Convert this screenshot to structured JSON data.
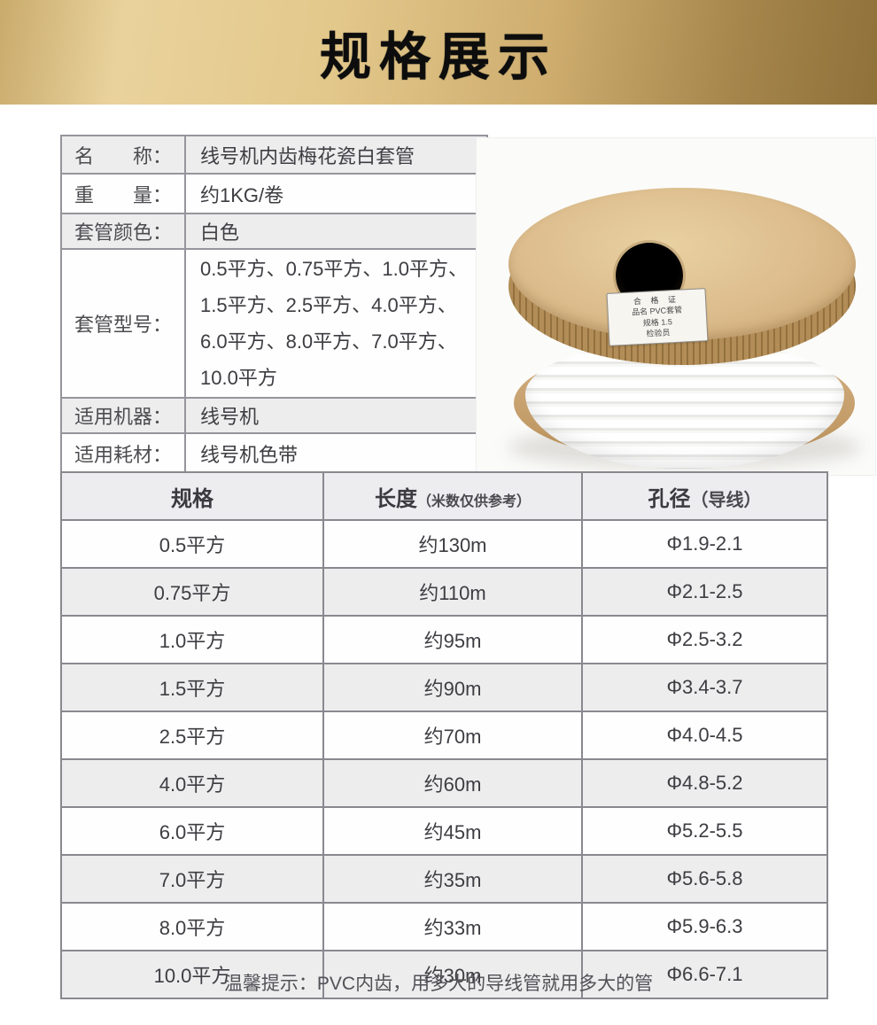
{
  "banner": {
    "title": "规格展示"
  },
  "colors": {
    "banner_gold_light": "#e9d29c",
    "banner_gold_dark": "#8f713a",
    "banner_text": "#0d0d0d",
    "table_border": "#8a888f",
    "row_shade": "#ededee",
    "spool_cardboard": "#d6b686",
    "tube_white": "#ffffff"
  },
  "spec_table": {
    "rows": [
      {
        "label": "名　　称：",
        "value": "线号机内齿梅花瓷白套管"
      },
      {
        "label": "重　　量：",
        "value": "约1KG/卷"
      },
      {
        "label": "套管颜色：",
        "value": "白色"
      },
      {
        "label": "套管型号：",
        "value_lines": [
          "0.5平方、0.75平方、1.0平方、",
          "1.5平方、2.5平方、4.0平方、",
          "6.0平方、8.0平方、7.0平方、",
          "10.0平方"
        ]
      },
      {
        "label": "适用机器：",
        "value": "线号机"
      },
      {
        "label": "适用耗材：",
        "value": "线号机色带"
      }
    ]
  },
  "product_photo": {
    "description": "白色套管卷（纸质线轴）",
    "cert_label_lines": [
      "合 格 证",
      "品名 PVC套管",
      "规格 1.5",
      "检验员"
    ]
  },
  "size_table": {
    "headers": {
      "spec": "规格",
      "length": "长度",
      "length_note": "（米数仅供参考）",
      "diameter": "孔径",
      "diameter_note": "（导线）"
    },
    "rows": [
      {
        "spec": "0.5平方",
        "length": "约130m",
        "diameter": "Φ1.9-2.1"
      },
      {
        "spec": "0.75平方",
        "length": "约110m",
        "diameter": "Φ2.1-2.5"
      },
      {
        "spec": "1.0平方",
        "length": "约95m",
        "diameter": "Φ2.5-3.2"
      },
      {
        "spec": "1.5平方",
        "length": "约90m",
        "diameter": "Φ3.4-3.7"
      },
      {
        "spec": "2.5平方",
        "length": "约70m",
        "diameter": "Φ4.0-4.5"
      },
      {
        "spec": "4.0平方",
        "length": "约60m",
        "diameter": "Φ4.8-5.2"
      },
      {
        "spec": "6.0平方",
        "length": "约45m",
        "diameter": "Φ5.2-5.5"
      },
      {
        "spec": "7.0平方",
        "length": "约35m",
        "diameter": "Φ5.6-5.8"
      },
      {
        "spec": "8.0平方",
        "length": "约33m",
        "diameter": "Φ5.9-6.3"
      },
      {
        "spec": "10.0平方",
        "length": "约30m",
        "diameter": "Φ6.6-7.1"
      }
    ]
  },
  "tip": "温馨提示：PVC内齿，用多大的导线管就用多大的管"
}
